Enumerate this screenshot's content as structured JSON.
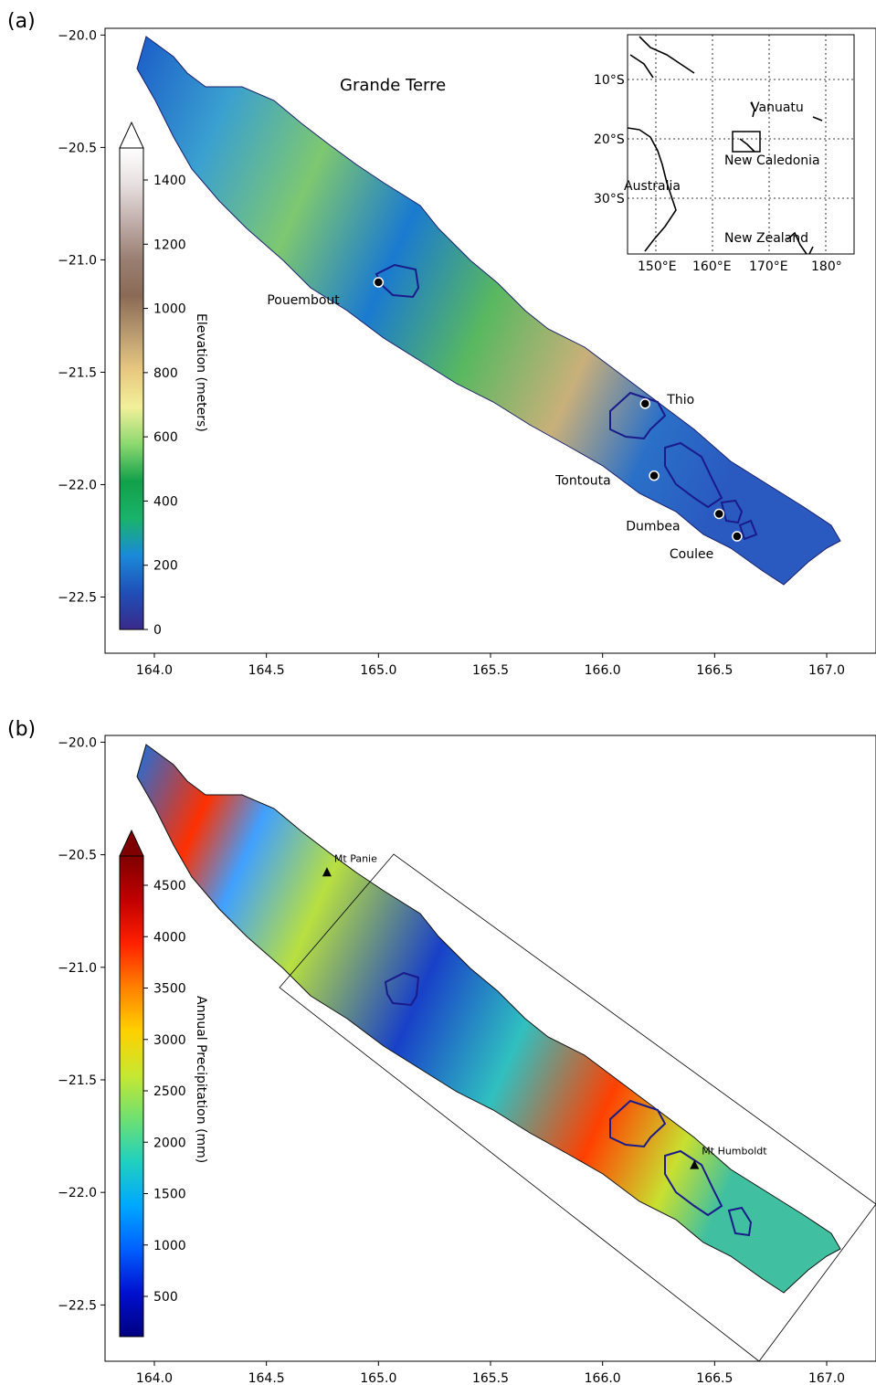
{
  "panel_a": {
    "label": "(a)",
    "title": "Grande Terre",
    "colorbar": {
      "label": "Elevation (meters)",
      "ticks": [
        "1400",
        "1200",
        "1000",
        "800",
        "600",
        "400",
        "200",
        "0"
      ],
      "colors": [
        "#3a2a8a",
        "#1f4fb8",
        "#1a8ad8",
        "#19b36a",
        "#12a04a",
        "#8cd870",
        "#f2f09a",
        "#e8c880",
        "#b89a70",
        "#8a6a55",
        "#9a7f72",
        "#c0aeaa",
        "#e6dfdf",
        "#ffffff"
      ]
    },
    "places": [
      {
        "name": "Pouembout",
        "lon": 165.0,
        "lat": -21.1
      },
      {
        "name": "Thio",
        "lon": 166.19,
        "lat": -21.64
      },
      {
        "name": "Tontouta",
        "lon": 166.23,
        "lat": -21.96
      },
      {
        "name": "Dumbea",
        "lon": 166.52,
        "lat": -22.13
      },
      {
        "name": "Coulee",
        "lon": 166.6,
        "lat": -22.23
      }
    ],
    "inset": {
      "lat_ticks": [
        "10°S",
        "20°S",
        "30°S"
      ],
      "lon_ticks": [
        "150°E",
        "160°E",
        "170°E",
        "180°"
      ],
      "labels": [
        "Vanuatu",
        "New Caledonia",
        "Australia",
        "New Zealand"
      ]
    }
  },
  "panel_b": {
    "label": "(b)",
    "colorbar": {
      "label": "Annual Precipitation (mm)",
      "ticks": [
        "4500",
        "4000",
        "3500",
        "3000",
        "2500",
        "2000",
        "1500",
        "1000",
        "500"
      ],
      "colors": [
        "#00007f",
        "#0010d0",
        "#0060ff",
        "#00a8ff",
        "#20d0c0",
        "#70e070",
        "#c8e830",
        "#ffd000",
        "#ff8000",
        "#ff2000",
        "#c00000",
        "#7f0000"
      ]
    },
    "peaks": [
      {
        "name": "Mt Panie",
        "lon": 164.77,
        "lat": -20.58
      },
      {
        "name": "Mt Humboldt",
        "lon": 166.41,
        "lat": -21.88
      }
    ]
  },
  "axes": {
    "x_ticks": [
      "164.0",
      "164.5",
      "165.0",
      "165.5",
      "166.0",
      "166.5",
      "167.0"
    ],
    "y_ticks": [
      "−20.0",
      "−20.5",
      "−21.0",
      "−21.5",
      "−22.0",
      "−22.5"
    ],
    "x_values": [
      164.0,
      164.5,
      165.0,
      165.5,
      166.0,
      166.5,
      167.0
    ],
    "y_values": [
      -20.0,
      -20.5,
      -21.0,
      -21.5,
      -22.0,
      -22.5
    ],
    "xlim": [
      163.78,
      167.22
    ],
    "ylim": [
      -22.75,
      -19.97
    ]
  }
}
